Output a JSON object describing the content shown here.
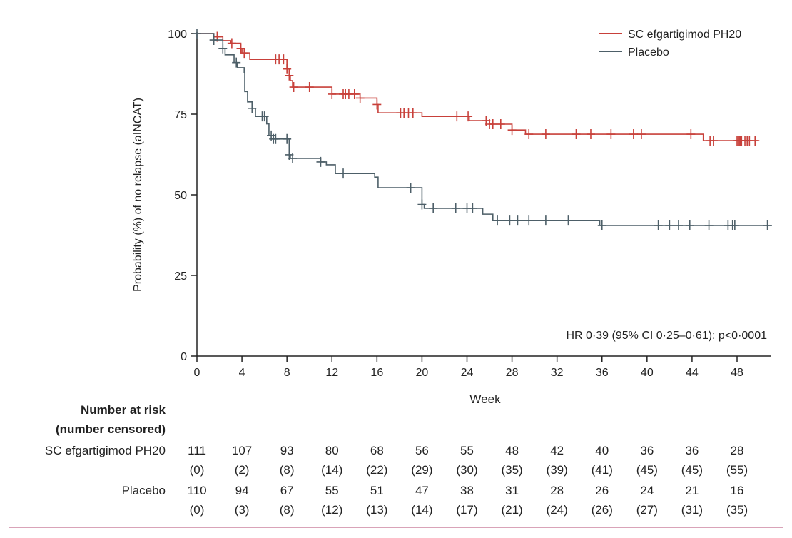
{
  "chart_data": {
    "type": "line",
    "subtype": "kaplan-meier",
    "xlabel": "Week",
    "ylabel": "Probability (%) of no relapse (aINCAT)",
    "xlim": [
      0,
      51
    ],
    "ylim": [
      0,
      100
    ],
    "xticks": [
      0,
      4,
      8,
      12,
      16,
      20,
      24,
      28,
      32,
      36,
      40,
      44,
      48
    ],
    "yticks": [
      0,
      25,
      50,
      75,
      100
    ],
    "grid": false,
    "legend_position": "top-right",
    "annotation": "HR 0·39 (95% CI 0·25–0·61); p<0·0001",
    "series": [
      {
        "name": "SC efgartigimod PH20",
        "color": "#c8403a",
        "steps": [
          [
            0,
            100
          ],
          [
            1.5,
            99
          ],
          [
            2.3,
            97.8
          ],
          [
            3.0,
            97
          ],
          [
            3.9,
            95.4
          ],
          [
            4.0,
            94
          ],
          [
            4.7,
            92
          ],
          [
            8.0,
            89
          ],
          [
            8.2,
            87
          ],
          [
            8.3,
            85.4
          ],
          [
            8.5,
            83.4
          ],
          [
            12.0,
            81.2
          ],
          [
            14.5,
            80
          ],
          [
            16.0,
            78
          ],
          [
            16.1,
            75.4
          ],
          [
            20.0,
            74.3
          ],
          [
            24.2,
            73
          ],
          [
            26.0,
            71.9
          ],
          [
            28.0,
            70.1
          ],
          [
            29.2,
            68.8
          ],
          [
            45.0,
            66.8
          ]
        ],
        "end": 49.9,
        "censored": [
          1.8,
          3.1,
          3.9,
          4.2,
          7.0,
          7.3,
          7.7,
          8.0,
          8.2,
          8.6,
          10.0,
          12.0,
          13.0,
          13.2,
          13.5,
          14.0,
          14.5,
          16.0,
          18.1,
          18.4,
          18.8,
          19.2,
          23.1,
          24.1,
          25.7,
          26.0,
          26.3,
          27.0,
          28.0,
          29.5,
          31.0,
          33.7,
          35.0,
          36.8,
          38.8,
          39.5,
          43.9,
          45.6,
          45.9,
          48.0,
          48.1,
          48.2,
          48.3,
          48.4,
          48.7,
          48.9,
          49.1,
          49.6
        ]
      },
      {
        "name": "Placebo",
        "color": "#4d5f68",
        "steps": [
          [
            0,
            100
          ],
          [
            1.5,
            98
          ],
          [
            2.3,
            95.4
          ],
          [
            2.5,
            93.4
          ],
          [
            3.3,
            91
          ],
          [
            3.6,
            89.4
          ],
          [
            4.2,
            87.8
          ],
          [
            4.25,
            82
          ],
          [
            4.5,
            78.8
          ],
          [
            4.9,
            76.8
          ],
          [
            5.2,
            74.3
          ],
          [
            6.2,
            72
          ],
          [
            6.4,
            68.4
          ],
          [
            6.8,
            67.3
          ],
          [
            8.2,
            62.4
          ],
          [
            8.3,
            61.3
          ],
          [
            11.0,
            60.2
          ],
          [
            11.5,
            59.3
          ],
          [
            12.3,
            56.6
          ],
          [
            15.8,
            55.5
          ],
          [
            16.1,
            52.2
          ],
          [
            20.0,
            47
          ],
          [
            20.2,
            45.8
          ],
          [
            24.5,
            45.8
          ],
          [
            25.4,
            44
          ],
          [
            26.3,
            42
          ],
          [
            35.8,
            40.5
          ]
        ],
        "end": 51.1,
        "censored": [
          0,
          1.5,
          2.3,
          3.5,
          4.9,
          5.8,
          6.0,
          6.6,
          6.8,
          7.0,
          8.0,
          8.2,
          8.5,
          11.0,
          13.0,
          19.0,
          20.0,
          21.0,
          23.0,
          24.0,
          24.5,
          26.7,
          27.8,
          28.5,
          29.5,
          31.0,
          33.0,
          36.0,
          41.0,
          42.0,
          42.8,
          43.8,
          45.5,
          47.2,
          47.6,
          47.8,
          50.7
        ]
      }
    ],
    "risk_table": {
      "title_line1": "Number at risk",
      "title_line2": "(number censored)",
      "rows": [
        {
          "label": "SC efgartigimod PH20",
          "at_risk": [
            "111",
            "107",
            "93",
            "80",
            "68",
            "56",
            "55",
            "48",
            "42",
            "40",
            "36",
            "36",
            "28"
          ],
          "censored": [
            "(0)",
            "(2)",
            "(8)",
            "(14)",
            "(22)",
            "(29)",
            "(30)",
            "(35)",
            "(39)",
            "(41)",
            "(45)",
            "(45)",
            "(55)"
          ]
        },
        {
          "label": "Placebo",
          "at_risk": [
            "110",
            "94",
            "67",
            "55",
            "51",
            "47",
            "38",
            "31",
            "28",
            "26",
            "24",
            "21",
            "16"
          ],
          "censored": [
            "(0)",
            "(3)",
            "(8)",
            "(12)",
            "(13)",
            "(14)",
            "(17)",
            "(21)",
            "(24)",
            "(26)",
            "(27)",
            "(31)",
            "(35)"
          ]
        }
      ]
    }
  }
}
